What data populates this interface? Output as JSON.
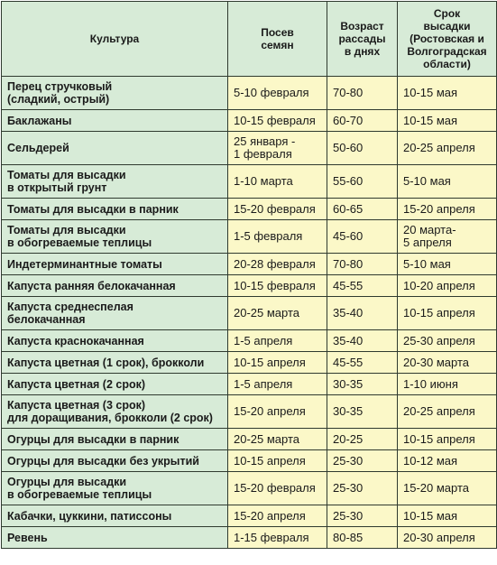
{
  "header": {
    "crop": "Культура",
    "sowing": "Посев\nсемян",
    "age": "Возраст\nрассады\nв днях",
    "planting": "Срок\nвысадки\n(Ростовская и\nВолгоградская\nобласти)"
  },
  "rows": [
    {
      "crop": "Перец стручковый\n(сладкий, острый)",
      "sowing": "5-10 февраля",
      "age": "70-80",
      "planting": "10-15 мая"
    },
    {
      "crop": "Баклажаны",
      "sowing": "10-15 февраля",
      "age": "60-70",
      "planting": "10-15 мая"
    },
    {
      "crop": "Сельдерей",
      "sowing": "25 января -\n1 февраля",
      "age": "50-60",
      "planting": "20-25 апреля"
    },
    {
      "crop": "Томаты для высадки\nв открытый  грунт",
      "sowing": "1-10 марта",
      "age": "55-60",
      "planting": "5-10 мая"
    },
    {
      "crop": "Томаты для высадки в парник",
      "sowing": "15-20 февраля",
      "age": "60-65",
      "planting": "15-20 апреля"
    },
    {
      "crop": "Томаты для высадки\n в обогреваемые теплицы",
      "sowing": "1-5 февраля",
      "age": "45-60",
      "planting": "20 марта-\n5 апреля"
    },
    {
      "crop": "Индетерминантные томаты",
      "sowing": "20-28 февраля",
      "age": "70-80",
      "planting": "5-10 мая"
    },
    {
      "crop": "Капуста ранняя белокачанная",
      "sowing": "10-15 февраля",
      "age": "45-55",
      "planting": "10-20 апреля"
    },
    {
      "crop": "Капуста среднеспелая\nбелокачанная",
      "sowing": "20-25 марта",
      "age": "35-40",
      "planting": "10-15 апреля"
    },
    {
      "crop": "Капуста краснокачанная",
      "sowing": "1-5 апреля",
      "age": "35-40",
      "planting": "25-30 апреля"
    },
    {
      "crop": "Капуста цветная (1 срок), брокколи",
      "sowing": "10-15 апреля",
      "age": "45-55",
      "planting": "20-30 марта"
    },
    {
      "crop": "Капуста цветная (2 срок)",
      "sowing": "1-5 апреля",
      "age": "30-35",
      "planting": "1-10 июня"
    },
    {
      "crop": "Капуста цветная (3 срок)\nдля доращивания, брокколи (2 срок)",
      "sowing": "15-20 апреля",
      "age": "30-35",
      "planting": "20-25 апреля"
    },
    {
      "crop": "Огурцы для высадки в парник",
      "sowing": "20-25 марта",
      "age": "20-25",
      "planting": "10-15 апреля"
    },
    {
      "crop": "Огурцы для высадки без укрытий",
      "sowing": "10-15 апреля",
      "age": "25-30",
      "planting": "10-12 мая"
    },
    {
      "crop": "Огурцы для высадки\nв обогреваемые теплицы",
      "sowing": "15-20 февраля",
      "age": "25-30",
      "planting": " 15-20 марта"
    },
    {
      "crop": "Кабачки, цуккини, патиссоны",
      "sowing": "15-20 апреля",
      "age": "25-30",
      "planting": "10-15 мая"
    },
    {
      "crop": "Ревень",
      "sowing": "1-15 февраля",
      "age": "80-85",
      "planting": "20-30 апреля"
    }
  ]
}
